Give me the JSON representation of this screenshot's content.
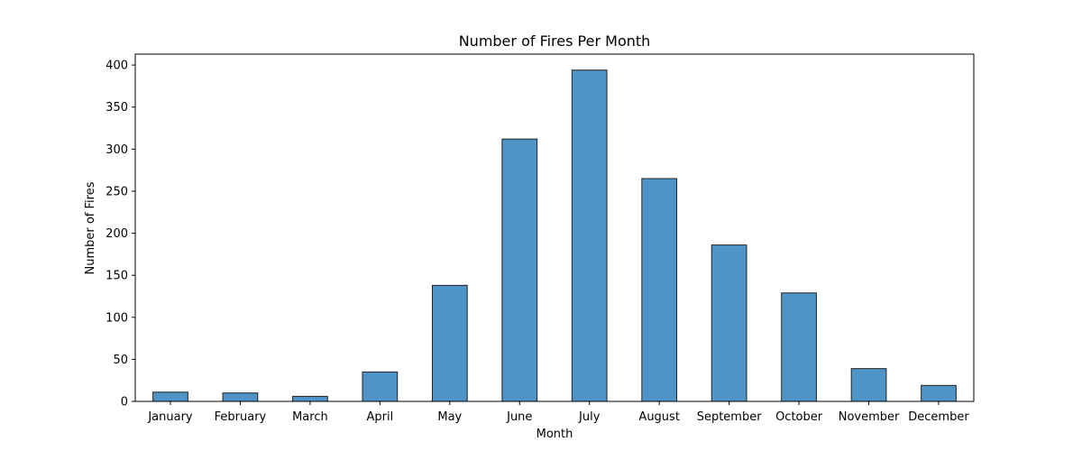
{
  "chart_data": {
    "type": "bar",
    "title": "Number of Fires Per Month",
    "xlabel": "Month",
    "ylabel": "Number of Fires",
    "categories": [
      "January",
      "February",
      "March",
      "April",
      "May",
      "June",
      "July",
      "August",
      "September",
      "October",
      "November",
      "December"
    ],
    "values": [
      11,
      10,
      6,
      35,
      138,
      312,
      394,
      265,
      186,
      129,
      39,
      19
    ],
    "ylim": [
      0,
      413
    ],
    "yticks": [
      "0",
      "50",
      "100",
      "150",
      "200",
      "250",
      "300",
      "350",
      "400"
    ],
    "grid": false,
    "legend": "none",
    "bar_color": "#4f94c6",
    "edge_color": "#222222"
  }
}
